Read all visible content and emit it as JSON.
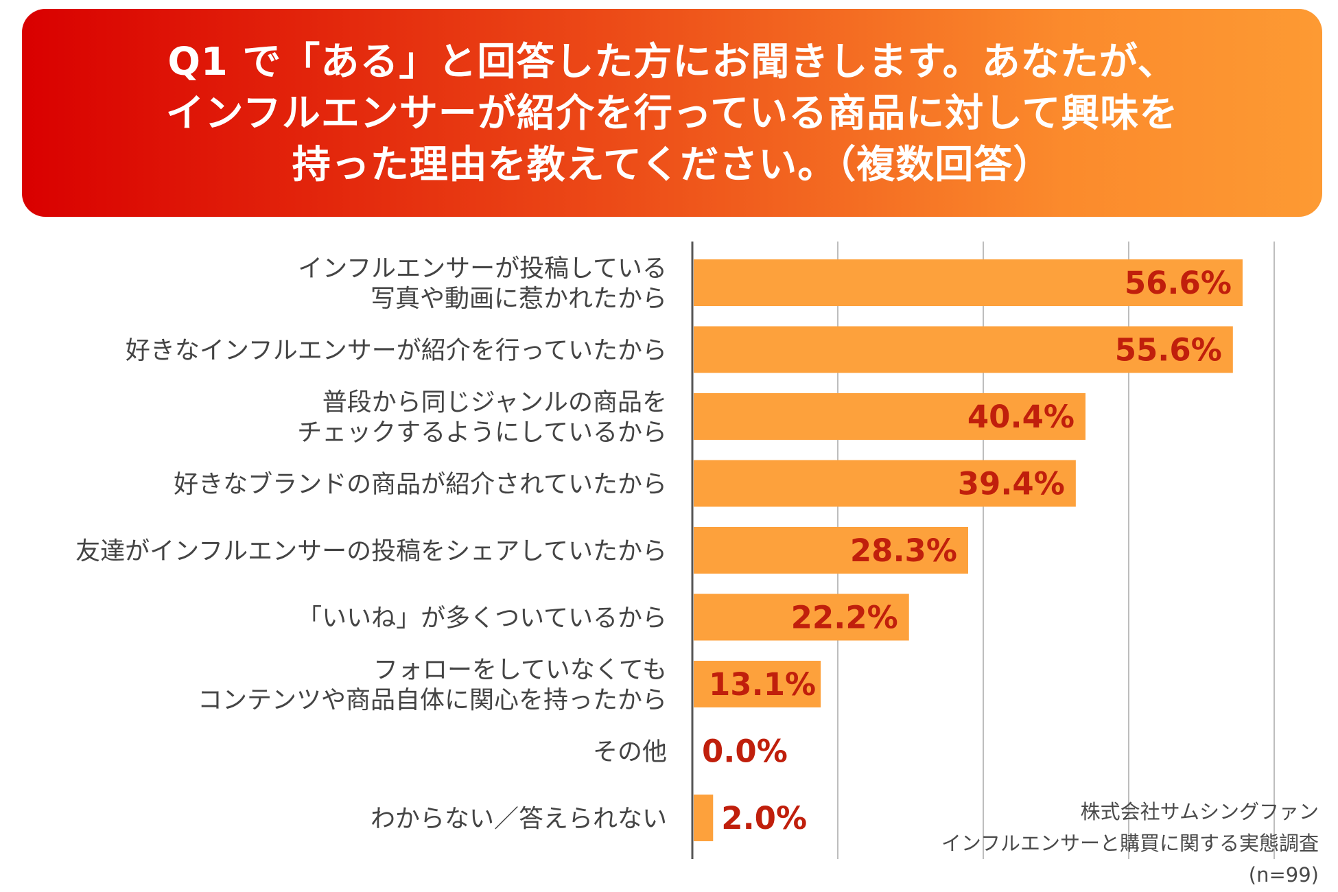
{
  "header": {
    "line1": "Q1 で「ある」と回答した方にお聞きします。あなたが、",
    "line2": "インフルエンサーが紹介を行っている商品に対して興味を",
    "line3": "持った理由を教えてください。（複数回答）"
  },
  "chart_data": {
    "type": "bar",
    "orientation": "horizontal",
    "title": "Q1 で「ある」と回答した方にお聞きします。あなたが、インフルエンサーが紹介を行っている商品に対して興味を持った理由を教えてください。（複数回答）",
    "categories": [
      [
        "インフルエンサーが投稿している",
        "写真や動画に惹かれたから"
      ],
      [
        "好きなインフルエンサーが紹介を行っていたから"
      ],
      [
        "普段から同じジャンルの商品を",
        "チェックするようにしているから"
      ],
      [
        "好きなブランドの商品が紹介されていたから"
      ],
      [
        "友達がインフルエンサーの投稿をシェアしていたから"
      ],
      [
        "「いいね」が多くついているから"
      ],
      [
        "フォローをしていなくても",
        "コンテンツや商品自体に関心を持ったから"
      ],
      [
        "その他"
      ],
      [
        "わからない／答えられない"
      ]
    ],
    "values": [
      56.6,
      55.6,
      40.4,
      39.4,
      28.3,
      22.2,
      13.1,
      0.0,
      2.0
    ],
    "value_labels": [
      "56.6%",
      "55.6%",
      "40.4%",
      "39.4%",
      "28.3%",
      "22.2%",
      "13.1%",
      "0.0%",
      "2.0%"
    ],
    "xlim": [
      0,
      60
    ],
    "gridlines": [
      0,
      15,
      30,
      45,
      60
    ],
    "bar_color": "#fda13c",
    "label_color": "#c01f0c"
  },
  "footer": {
    "company": "株式会社サムシングファン",
    "survey": "インフルエンサーと購買に関する実態調査",
    "n": "(n=99)"
  }
}
